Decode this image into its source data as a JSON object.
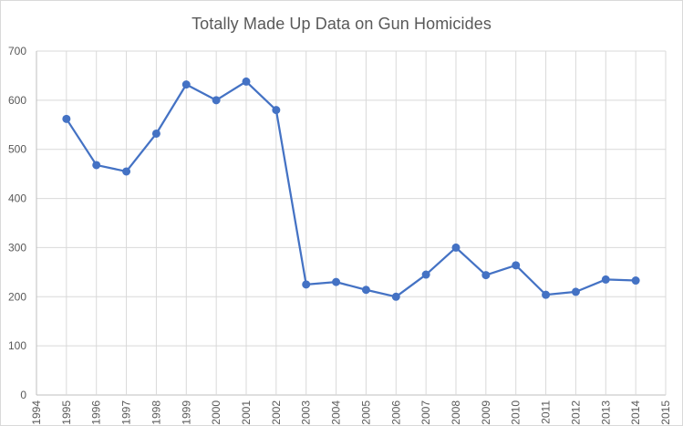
{
  "chart_data": {
    "type": "line",
    "title": "Totally Made Up Data on Gun Homicides",
    "xlabel": "",
    "ylabel": "",
    "xlim": [
      1994,
      2015
    ],
    "ylim": [
      0,
      700
    ],
    "x_ticks": [
      "1994",
      "1995",
      "1996",
      "1997",
      "1998",
      "1999",
      "2000",
      "2001",
      "2002",
      "2003",
      "2004",
      "2005",
      "2006",
      "2007",
      "2008",
      "2009",
      "2010",
      "2011",
      "2012",
      "2013",
      "2014",
      "2015"
    ],
    "y_ticks": [
      0,
      100,
      200,
      300,
      400,
      500,
      600,
      700
    ],
    "grid": true,
    "legend": null,
    "series": [
      {
        "name": "Gun Homicides",
        "color": "#4472c4",
        "marker": "circle",
        "x": [
          1995,
          1996,
          1997,
          1998,
          1999,
          2000,
          2001,
          2002,
          2003,
          2004,
          2005,
          2006,
          2007,
          2008,
          2009,
          2010,
          2011,
          2012,
          2013,
          2014
        ],
        "values": [
          562,
          468,
          455,
          532,
          632,
          600,
          638,
          580,
          225,
          230,
          214,
          200,
          245,
          300,
          244,
          264,
          204,
          210,
          235,
          233
        ]
      }
    ]
  },
  "colors": {
    "line": "#4472c4",
    "grid": "#d9d9d9",
    "axis": "#bfbfbf",
    "text": "#595959"
  }
}
